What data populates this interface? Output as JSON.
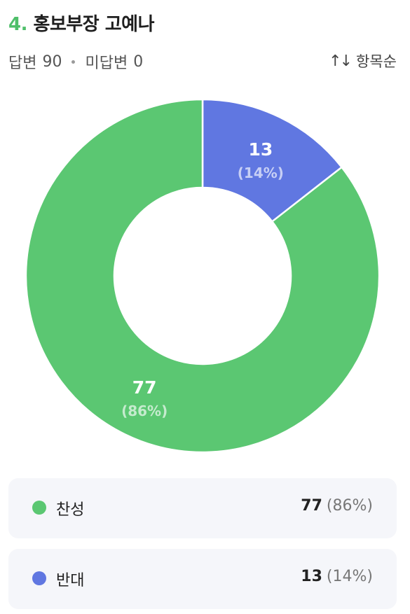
{
  "question": {
    "number": "4.",
    "title": "홍보부장 고예나"
  },
  "stats": {
    "answered_label": "답변",
    "answered_count": "90",
    "unanswered_label": "미답변",
    "unanswered_count": "0"
  },
  "sort": {
    "icon": "sort-arrows-icon",
    "label": "항목순"
  },
  "colors": {
    "accent": "#4fbf6a",
    "approve": "#5bc772",
    "oppose": "#6077e1"
  },
  "chart_data": {
    "type": "pie",
    "donut": true,
    "categories": [
      "찬성",
      "반대"
    ],
    "values": [
      77,
      13
    ],
    "percent_labels": [
      "(86%)",
      "(14%)"
    ],
    "colors": [
      "#5bc772",
      "#6077e1"
    ],
    "start": "top",
    "direction": "clockwise",
    "slice_order": [
      "반대",
      "찬성"
    ]
  },
  "legend": [
    {
      "label": "찬성",
      "count": "77",
      "percent": "(86%)",
      "color": "#5bc772"
    },
    {
      "label": "반대",
      "count": "13",
      "percent": "(14%)",
      "color": "#6077e1"
    }
  ]
}
